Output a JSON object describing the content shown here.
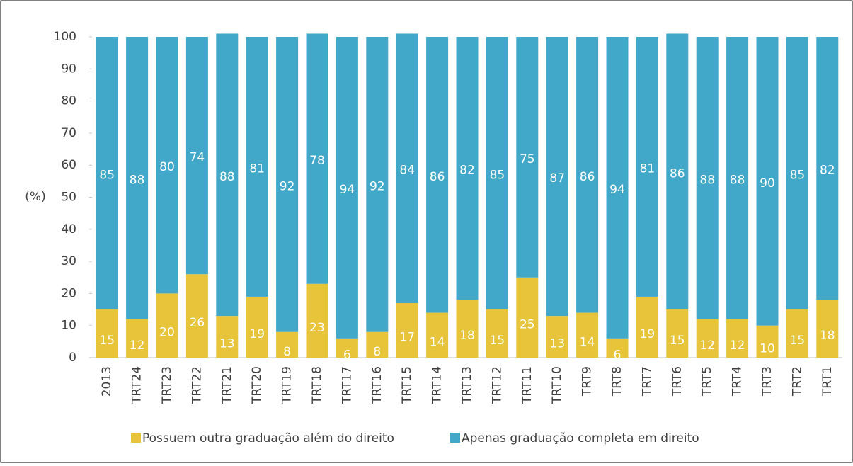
{
  "chart_data": {
    "type": "stacked_bar",
    "y_label": "(%)",
    "categories": [
      "2013",
      "TRT24",
      "TRT23",
      "TRT22",
      "TRT21",
      "TRT20",
      "TRT19",
      "TRT18",
      "TRT17",
      "TRT16",
      "TRT15",
      "TRT14",
      "TRT13",
      "TRT12",
      "TRT11",
      "TRT10",
      "TRT9",
      "TRT8",
      "TRT7",
      "TRT6",
      "TRT5",
      "TRT4",
      "TRT3",
      "TRT2",
      "TRT1"
    ],
    "series": [
      {
        "name": "Possuem outra graduação além do direito",
        "color": "#e8c43a",
        "values": [
          15,
          12,
          20,
          26,
          13,
          19,
          8,
          23,
          6,
          8,
          17,
          14,
          18,
          15,
          25,
          13,
          14,
          6,
          19,
          15,
          12,
          12,
          10,
          15,
          18
        ]
      },
      {
        "name": "Apenas graduação completa em direito",
        "color": "#42a8c9",
        "values": [
          85,
          88,
          80,
          74,
          88,
          81,
          92,
          78,
          94,
          92,
          84,
          86,
          82,
          85,
          75,
          87,
          86,
          94,
          81,
          86,
          88,
          88,
          90,
          85,
          82
        ]
      }
    ],
    "ylim": [
      0,
      100
    ],
    "yticks": [
      0,
      10,
      20,
      30,
      40,
      50,
      60,
      70,
      80,
      90,
      100
    ],
    "legend": "bottom"
  }
}
